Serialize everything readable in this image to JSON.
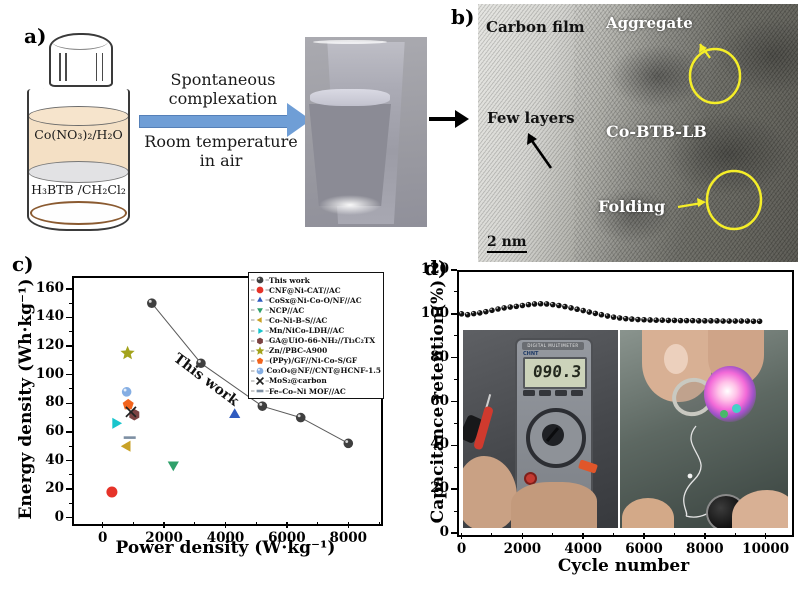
{
  "figure": {
    "panel_a": {
      "label": "a)",
      "vial": {
        "top_layer_label": "Co(NO₃)₂/H₂O",
        "bottom_layer_label": "H₃BTB /CH₂Cl₂"
      },
      "arrow_text_top": "Spontaneous complexation",
      "arrow_text_bottom": "Room temperature in air"
    },
    "panel_b": {
      "label": "b)",
      "annotations": {
        "carbon_film": "Carbon film",
        "aggregate": "Aggregate",
        "few_layers": "Few layers",
        "material": "Co-BTB-LB",
        "folding": "Folding",
        "scale_bar": "2 nm"
      }
    },
    "panel_c": {
      "label": "c)",
      "annotation": "This work"
    },
    "panel_d": {
      "label": "d)",
      "inset": {
        "multimeter_title": "DIGITAL MULTIMETER",
        "multimeter_brand": "CHNT",
        "multimeter_reading": "090.3"
      }
    },
    "colors": {
      "reaction_arrow": "#6f9ed6",
      "tem_highlight": "#f5ee28",
      "this_work": "#3f3f3f"
    }
  },
  "chart_data": [
    {
      "id": "energy-vs-power",
      "type": "scatter",
      "title": "",
      "xlabel": "Power density (W·kg⁻¹)",
      "ylabel": "Energy density (Wh·kg⁻¹)",
      "xlim": [
        -1000,
        9000
      ],
      "ylim": [
        -3,
        169
      ],
      "xticks": [
        0,
        2000,
        4000,
        6000,
        8000
      ],
      "yticks": [
        0,
        20,
        40,
        60,
        80,
        100,
        120,
        140,
        160
      ],
      "x_minor_step": 1000,
      "y_minor_step": 10,
      "grid": false,
      "legend_position": "top-right",
      "annotation": "This work",
      "series": [
        {
          "name": "This work",
          "marker": "sphere",
          "color": "#3f3f3f",
          "size": 4.8,
          "line": true,
          "line_color": "#5a5a5a",
          "points": [
            [
              1600,
              150
            ],
            [
              3200,
              108
            ],
            [
              5200,
              78
            ],
            [
              6450,
              70
            ],
            [
              8000,
              52
            ]
          ]
        },
        {
          "name": "CNF@Ni-CAT//AC",
          "marker": "circle",
          "color": "#e63329",
          "size": 5.5,
          "points": [
            [
              300,
              18
            ]
          ]
        },
        {
          "name": "CoSx@Ni-Co-O/NF//AC",
          "marker": "triangle-up",
          "color": "#2f5bbf",
          "size": 6.5,
          "points": [
            [
              4300,
              72
            ]
          ]
        },
        {
          "name": "NCP//AC",
          "marker": "triangle-down",
          "color": "#2fa06a",
          "size": 6.5,
          "points": [
            [
              2300,
              37
            ]
          ]
        },
        {
          "name": "Co-Ni-B-S//AC",
          "marker": "triangle-left",
          "color": "#c9a227",
          "size": 6.5,
          "points": [
            [
              800,
              50
            ]
          ]
        },
        {
          "name": "Mn/NiCo-LDH//AC",
          "marker": "triangle-right",
          "color": "#18c5cc",
          "size": 6.5,
          "points": [
            [
              420,
              66
            ]
          ]
        },
        {
          "name": "GA@UiO-66-NH₂//Ti₃C₂TX",
          "marker": "hexagon",
          "color": "#7b4242",
          "size": 5.8,
          "points": [
            [
              1030,
              72
            ]
          ]
        },
        {
          "name": "Zn//PBC-A900",
          "marker": "star",
          "color": "#a3a31c",
          "size": 7.5,
          "points": [
            [
              810,
              115
            ]
          ]
        },
        {
          "name": "(PPy)/GF//Ni-Co-S/GF",
          "marker": "pentagon",
          "color": "#f2641d",
          "size": 5.8,
          "points": [
            [
              830,
              79
            ]
          ]
        },
        {
          "name": "Co₃O₄@NF//CNT@HCNF-1.5",
          "marker": "sphere",
          "color": "#85aee3",
          "size": 4.8,
          "points": [
            [
              780,
              88
            ]
          ]
        },
        {
          "name": "MoS₂@carbon",
          "marker": "x",
          "color": "#222222",
          "size": 5,
          "points": [
            [
              920,
              74
            ]
          ]
        },
        {
          "name": "Fe–Co–Ni MOF//AC",
          "marker": "dash",
          "color": "#7d8fa3",
          "size": 6,
          "points": [
            [
              880,
              56
            ]
          ]
        }
      ]
    },
    {
      "id": "cycling-stability",
      "type": "scatter",
      "title": "",
      "xlabel": "Cycle number",
      "ylabel": "Capacitance retention(%)",
      "xlim": [
        -150,
        10800
      ],
      "ylim": [
        0,
        120
      ],
      "xticks": [
        0,
        2000,
        4000,
        6000,
        8000,
        10000
      ],
      "yticks": [
        0,
        20,
        40,
        60,
        80,
        100,
        120
      ],
      "x_minor_step": 1000,
      "y_minor_step": 10,
      "grid": false,
      "legend_position": "none",
      "series": [
        {
          "name": "Capacitance retention",
          "marker": "sphere",
          "color": "#101010",
          "size": 2.8,
          "line": false,
          "points": [
            [
              0,
              100
            ],
            [
              200,
              99.6
            ],
            [
              400,
              100.1
            ],
            [
              600,
              100.4
            ],
            [
              800,
              101.0
            ],
            [
              1000,
              101.6
            ],
            [
              1200,
              102.2
            ],
            [
              1400,
              102.7
            ],
            [
              1600,
              103.1
            ],
            [
              1800,
              103.4
            ],
            [
              2000,
              103.8
            ],
            [
              2200,
              104.2
            ],
            [
              2400,
              104.5
            ],
            [
              2600,
              104.6
            ],
            [
              2800,
              104.5
            ],
            [
              3000,
              104.2
            ],
            [
              3200,
              103.8
            ],
            [
              3400,
              103.3
            ],
            [
              3600,
              102.7
            ],
            [
              3800,
              102.1
            ],
            [
              4000,
              101.5
            ],
            [
              4200,
              100.8
            ],
            [
              4400,
              100.2
            ],
            [
              4600,
              99.6
            ],
            [
              4800,
              99.0
            ],
            [
              5000,
              98.5
            ],
            [
              5200,
              98.1
            ],
            [
              5400,
              97.8
            ],
            [
              5600,
              97.6
            ],
            [
              5800,
              97.4
            ],
            [
              6000,
              97.3
            ],
            [
              6200,
              97.2
            ],
            [
              6400,
              97.1
            ],
            [
              6600,
              97.1
            ],
            [
              6800,
              97.0
            ],
            [
              7000,
              97.0
            ],
            [
              7200,
              96.9
            ],
            [
              7400,
              96.9
            ],
            [
              7600,
              96.9
            ],
            [
              7800,
              96.8
            ],
            [
              8000,
              96.8
            ],
            [
              8200,
              96.8
            ],
            [
              8400,
              96.8
            ],
            [
              8600,
              96.7
            ],
            [
              8800,
              96.7
            ],
            [
              9000,
              96.7
            ],
            [
              9200,
              96.7
            ],
            [
              9400,
              96.7
            ],
            [
              9600,
              96.6
            ],
            [
              9800,
              96.6
            ]
          ]
        }
      ]
    }
  ]
}
